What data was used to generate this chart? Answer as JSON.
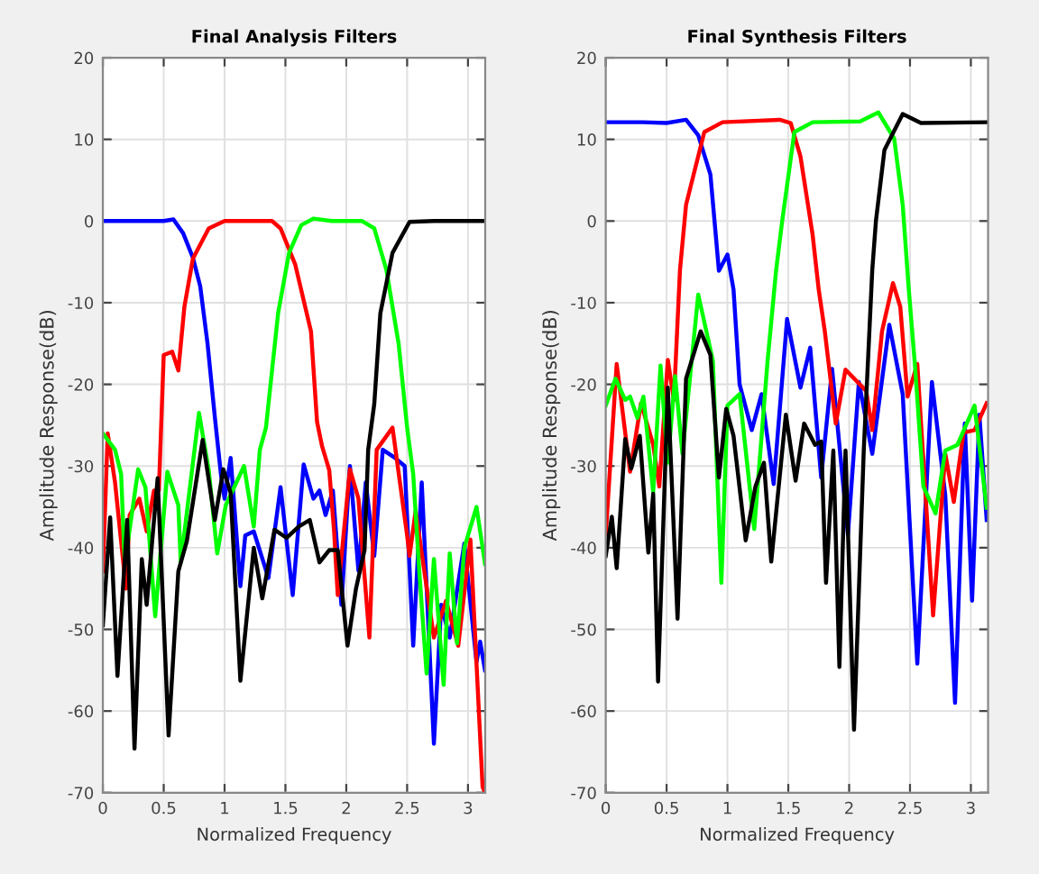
{
  "chart_data": [
    {
      "type": "line",
      "title": "Final Analysis Filters",
      "xlabel": "Normalized Frequency",
      "ylabel": "Amplitude Response(dB)",
      "xlim": [
        0,
        3.1416
      ],
      "ylim": [
        -70,
        20
      ],
      "xticks": [
        0,
        0.5,
        1,
        1.5,
        2,
        2.5,
        3
      ],
      "yticks": [
        -70,
        -60,
        -50,
        -40,
        -30,
        -20,
        -10,
        0,
        10,
        20
      ],
      "grid": true,
      "legend": false,
      "series": [
        {
          "color": "#0000ff",
          "x": [
            0,
            0.3,
            0.5,
            0.58,
            0.66,
            0.74,
            0.8,
            0.86,
            0.92,
            0.97,
            1.0,
            1.05,
            1.13,
            1.17,
            1.24,
            1.36,
            1.46,
            1.56,
            1.65,
            1.73,
            1.78,
            1.83,
            1.89,
            1.96,
            2.03,
            2.1,
            2.16,
            2.23,
            2.3,
            2.4,
            2.48,
            2.55,
            2.62,
            2.72,
            2.78,
            2.85,
            2.97,
            3.07,
            3.1,
            3.14
          ],
          "values": [
            0,
            0,
            0,
            0.2,
            -1.5,
            -4.5,
            -8,
            -15,
            -24,
            -31,
            -34,
            -29,
            -44.7,
            -38.5,
            -38,
            -43.7,
            -32.6,
            -45.8,
            -29.8,
            -34,
            -33,
            -36,
            -33,
            -47,
            -30,
            -42.8,
            -32,
            -41,
            -28,
            -29,
            -30,
            -52,
            -32,
            -64,
            -47,
            -51,
            -39.5,
            -54,
            -51.5,
            -55
          ]
        },
        {
          "color": "#ff0000",
          "x": [
            0,
            0.04,
            0.1,
            0.19,
            0.22,
            0.3,
            0.36,
            0.42,
            0.46,
            0.5,
            0.57,
            0.62,
            0.67,
            0.74,
            0.87,
            1.0,
            1.39,
            1.46,
            1.58,
            1.71,
            1.76,
            1.8,
            1.86,
            1.9,
            1.93,
            2.03,
            2.1,
            2.19,
            2.25,
            2.38,
            2.5,
            2.52,
            2.57,
            2.72,
            2.82,
            2.92,
            3.02,
            3.12,
            3.14
          ],
          "values": [
            -42.9,
            -26,
            -32,
            -45,
            -36,
            -34,
            -38,
            -33,
            -33,
            -16.4,
            -16,
            -18.3,
            -10.5,
            -4.6,
            -0.9,
            0,
            0,
            -0.9,
            -5.3,
            -13.5,
            -24.6,
            -27.5,
            -30.5,
            -38,
            -45.8,
            -30.4,
            -34,
            -51,
            -28,
            -25.3,
            -38.5,
            -41,
            -35.5,
            -51,
            -46.5,
            -52,
            -39,
            -69.3,
            -70
          ]
        },
        {
          "color": "#00ff00",
          "x": [
            0,
            0.1,
            0.15,
            0.18,
            0.29,
            0.35,
            0.43,
            0.53,
            0.62,
            0.64,
            0.79,
            0.87,
            0.94,
            1.01,
            1.16,
            1.24,
            1.29,
            1.34,
            1.44,
            1.53,
            1.63,
            1.73,
            1.88,
            2.13,
            2.23,
            2.33,
            2.43,
            2.5,
            2.55,
            2.6,
            2.66,
            2.72,
            2.8,
            2.85,
            2.91,
            2.97,
            3.07,
            3.14
          ],
          "values": [
            -26,
            -28,
            -31,
            -42,
            -30.4,
            -32.6,
            -48.4,
            -30.7,
            -34.8,
            -41.8,
            -23.5,
            -30.5,
            -40.7,
            -34.8,
            -30,
            -37.4,
            -28,
            -25.3,
            -11.3,
            -3.9,
            -0.5,
            0.3,
            0,
            0,
            -0.9,
            -6,
            -15,
            -25.3,
            -31,
            -42.9,
            -55.4,
            -41.4,
            -56.8,
            -40.7,
            -51.7,
            -40,
            -35,
            -42
          ]
        },
        {
          "color": "#000000",
          "x": [
            0,
            0.06,
            0.12,
            0.2,
            0.26,
            0.32,
            0.36,
            0.45,
            0.54,
            0.62,
            0.69,
            0.82,
            0.92,
            0.99,
            1.05,
            1.13,
            1.24,
            1.31,
            1.41,
            1.51,
            1.61,
            1.7,
            1.78,
            1.86,
            1.93,
            2.01,
            2.08,
            2.15,
            2.18,
            2.23,
            2.28,
            2.38,
            2.52,
            2.72,
            3.14
          ],
          "values": [
            -49.5,
            -36.3,
            -55.7,
            -36.6,
            -64.6,
            -41.4,
            -47,
            -31.5,
            -63,
            -42.9,
            -39.2,
            -26.8,
            -36.6,
            -30.4,
            -33.3,
            -56.3,
            -40,
            -46.2,
            -37.8,
            -38.8,
            -37.4,
            -36.6,
            -41.8,
            -40.3,
            -40.3,
            -52,
            -45,
            -40.3,
            -28,
            -22.4,
            -11.3,
            -3.9,
            -0.1,
            0,
            0
          ]
        }
      ]
    },
    {
      "type": "line",
      "title": "Final Synthesis Filters",
      "xlabel": "Normalized Frequency",
      "ylabel": "Amplitude Response(dB)",
      "xlim": [
        0,
        3.1416
      ],
      "ylim": [
        -70,
        20
      ],
      "xticks": [
        0,
        0.5,
        1,
        1.5,
        2,
        2.5,
        3
      ],
      "yticks": [
        -70,
        -60,
        -50,
        -40,
        -30,
        -20,
        -10,
        0,
        10,
        20
      ],
      "grid": true,
      "legend": false,
      "series": [
        {
          "color": "#0000ff",
          "x": [
            0,
            0.3,
            0.5,
            0.66,
            0.76,
            0.86,
            0.93,
            1.0,
            1.05,
            1.1,
            1.2,
            1.28,
            1.38,
            1.49,
            1.6,
            1.68,
            1.77,
            1.86,
            1.99,
            2.08,
            2.19,
            2.33,
            2.44,
            2.56,
            2.68,
            2.79,
            2.87,
            2.95,
            3.01,
            3.07,
            3.13
          ],
          "values": [
            12.1,
            12.1,
            12,
            12.4,
            10.5,
            5.7,
            -6.1,
            -4.1,
            -8.4,
            -20,
            -25.6,
            -21.2,
            -32.2,
            -12,
            -20.4,
            -15.5,
            -31.4,
            -18.1,
            -38.4,
            -19.7,
            -28.5,
            -12.7,
            -21.2,
            -54.2,
            -19.7,
            -33.6,
            -59,
            -24.8,
            -46.5,
            -23.7,
            -36.6
          ]
        },
        {
          "color": "#ff0000",
          "x": [
            0,
            0.09,
            0.2,
            0.29,
            0.39,
            0.44,
            0.51,
            0.56,
            0.61,
            0.66,
            0.81,
            0.96,
            1.43,
            1.52,
            1.6,
            1.7,
            1.75,
            1.8,
            1.89,
            1.97,
            2.14,
            2.19,
            2.27,
            2.36,
            2.42,
            2.48,
            2.56,
            2.69,
            2.79,
            2.86,
            2.94,
            3.03,
            3.13
          ],
          "values": [
            -38.4,
            -17.5,
            -30.7,
            -22.3,
            -27.4,
            -32.5,
            -17,
            -21.9,
            -6,
            2,
            10.9,
            12.1,
            12.4,
            12,
            7.9,
            -1.7,
            -8.4,
            -13.5,
            -24.8,
            -18.2,
            -20.8,
            -25.6,
            -13.5,
            -7.6,
            -10.5,
            -21.5,
            -17.5,
            -48.3,
            -28.5,
            -34.4,
            -25.9,
            -25.6,
            -22.3
          ]
        },
        {
          "color": "#00ff00",
          "x": [
            0,
            0.08,
            0.16,
            0.2,
            0.26,
            0.31,
            0.39,
            0.45,
            0.51,
            0.57,
            0.63,
            0.76,
            0.88,
            0.95,
            1.0,
            1.1,
            1.22,
            1.33,
            1.4,
            1.45,
            1.55,
            1.7,
            2.09,
            2.24,
            2.37,
            2.44,
            2.49,
            2.54,
            2.61,
            2.71,
            2.79,
            2.89,
            3.03,
            3.13
          ],
          "values": [
            -22.6,
            -19.3,
            -21.9,
            -21.5,
            -24.1,
            -21.5,
            -33.2,
            -17.7,
            -29.6,
            -19,
            -28.5,
            -9,
            -17.1,
            -44.3,
            -22.6,
            -21.2,
            -37.7,
            -17.1,
            -6,
            0,
            10.9,
            12.1,
            12.2,
            13.3,
            10.1,
            2,
            -8.4,
            -17.5,
            -32.5,
            -35.8,
            -28.1,
            -27.4,
            -22.6,
            -35.1
          ]
        },
        {
          "color": "#000000",
          "x": [
            0,
            0.05,
            0.09,
            0.16,
            0.21,
            0.28,
            0.35,
            0.39,
            0.43,
            0.51,
            0.59,
            0.66,
            0.78,
            0.86,
            0.93,
            0.99,
            1.05,
            1.15,
            1.23,
            1.3,
            1.36,
            1.48,
            1.56,
            1.63,
            1.72,
            1.77,
            1.81,
            1.87,
            1.92,
            1.97,
            2.04,
            2.12,
            2.19,
            2.22,
            2.29,
            2.44,
            2.59,
            3.13
          ],
          "values": [
            -41,
            -36.2,
            -42.5,
            -26.7,
            -30.3,
            -26.3,
            -40.6,
            -33.4,
            -56.4,
            -20.4,
            -48.7,
            -19.3,
            -13.5,
            -16.4,
            -31.4,
            -23,
            -26.3,
            -39.1,
            -32.5,
            -29.6,
            -41.7,
            -23.7,
            -31.8,
            -24.8,
            -27.4,
            -27,
            -44.3,
            -28.1,
            -54.6,
            -28.1,
            -62.3,
            -28.1,
            -6,
            0,
            8.7,
            13.1,
            12,
            12.1
          ]
        }
      ]
    }
  ]
}
